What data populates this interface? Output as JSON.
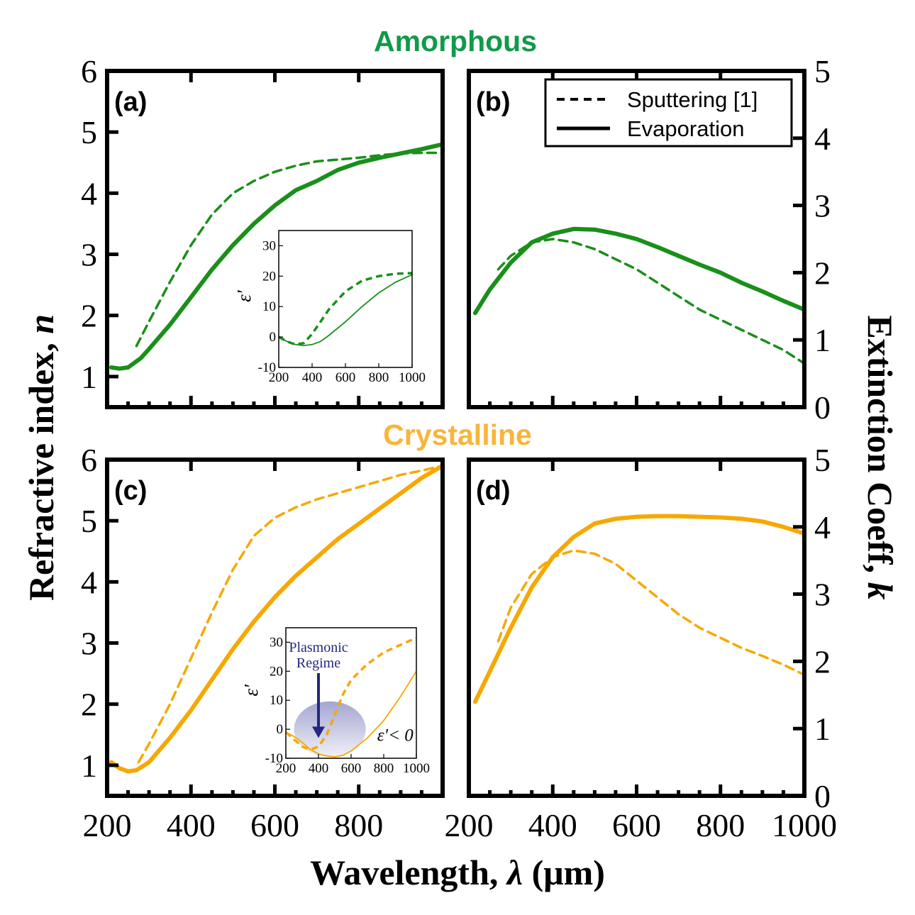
{
  "figure": {
    "group_titles": {
      "amorphous": "Amorphous",
      "crystalline": "Crystalline"
    },
    "y_left_label_main": "Refractive index, ",
    "y_left_label_symbol": "n",
    "y_right_label_main": "Extinction Coeff, ",
    "y_right_label_symbol": "k",
    "x_label_main": "Wavelength, ",
    "x_label_symbol": "λ",
    "x_label_unit": " (μm)",
    "legend": {
      "dashed": "Sputtering [1]",
      "solid": "Evaporation"
    },
    "colors": {
      "amorphous": "#1a8f1a",
      "crystalline": "#f7a800",
      "amorphous_title": "#119a4a",
      "crystalline_title": "#f9b43a",
      "plasmonic": "#24277f",
      "plasmonic_fill": "#9a9ccc"
    },
    "inset_ylabel": "ε′",
    "inset_c_annotation_line1": "Plasmonic",
    "inset_c_annotation_line2": "Regime",
    "inset_c_condition": "ε′< 0"
  },
  "chart_data": [
    {
      "panel": "(a)",
      "type": "line",
      "group": "Amorphous",
      "xlabel": "Wavelength, λ (μm)",
      "ylabel": "Refractive index, n",
      "xlim": [
        200,
        1000
      ],
      "ylim": [
        0.5,
        6
      ],
      "xticks": [
        200,
        400,
        600,
        800
      ],
      "yticks": [
        1,
        2,
        3,
        4,
        5,
        6
      ],
      "series": [
        {
          "name": "Sputtering [1]",
          "style": "dashed",
          "x": [
            270,
            300,
            350,
            400,
            450,
            500,
            550,
            600,
            650,
            700,
            750,
            800,
            850,
            900,
            950,
            1000
          ],
          "values": [
            1.5,
            1.9,
            2.55,
            3.15,
            3.65,
            4.0,
            4.2,
            4.35,
            4.45,
            4.52,
            4.55,
            4.58,
            4.62,
            4.65,
            4.66,
            4.66
          ]
        },
        {
          "name": "Evaporation",
          "style": "solid",
          "x": [
            210,
            230,
            250,
            280,
            300,
            350,
            400,
            450,
            500,
            550,
            600,
            650,
            700,
            750,
            800,
            850,
            900,
            950,
            1000
          ],
          "values": [
            1.15,
            1.13,
            1.15,
            1.3,
            1.45,
            1.85,
            2.3,
            2.75,
            3.15,
            3.5,
            3.8,
            4.05,
            4.2,
            4.38,
            4.5,
            4.58,
            4.65,
            4.72,
            4.8
          ]
        }
      ],
      "inset": {
        "xlim": [
          200,
          1000
        ],
        "ylim": [
          -10,
          35
        ],
        "xticks": [
          200,
          400,
          600,
          800,
          1000
        ],
        "yticks": [
          -10,
          0,
          10,
          20,
          30
        ],
        "series": [
          {
            "name": "Sputtering [1]",
            "style": "dashed",
            "x": [
              200,
              250,
              300,
              350,
              400,
              450,
              500,
              600,
              700,
              800,
              900,
              1000
            ],
            "values": [
              0,
              -1.5,
              -2.5,
              -2,
              1,
              5,
              9,
              15,
              18.5,
              20,
              20.8,
              21
            ]
          },
          {
            "name": "Evaporation",
            "style": "solid",
            "x": [
              200,
              250,
              300,
              350,
              400,
              450,
              500,
              600,
              700,
              800,
              900,
              1000
            ],
            "values": [
              0,
              -1.5,
              -2.5,
              -2.8,
              -2.5,
              -1.5,
              0.5,
              5,
              10,
              14.5,
              18,
              20.5
            ]
          }
        ]
      }
    },
    {
      "panel": "(b)",
      "type": "line",
      "group": "Amorphous",
      "xlabel": "Wavelength, λ (μm)",
      "ylabel": "Extinction Coeff, k",
      "xlim": [
        200,
        1000
      ],
      "ylim": [
        0,
        5
      ],
      "xticks": [
        200,
        400,
        600,
        800
      ],
      "yticks": [
        0,
        1,
        2,
        3,
        4,
        5
      ],
      "series": [
        {
          "name": "Sputtering [1]",
          "style": "dashed",
          "x": [
            270,
            300,
            350,
            400,
            450,
            500,
            550,
            600,
            650,
            700,
            750,
            800,
            850,
            900,
            950,
            1000
          ],
          "values": [
            2.05,
            2.25,
            2.45,
            2.5,
            2.45,
            2.35,
            2.2,
            2.05,
            1.85,
            1.65,
            1.45,
            1.3,
            1.15,
            1.0,
            0.85,
            0.65
          ]
        },
        {
          "name": "Evaporation",
          "style": "solid",
          "x": [
            215,
            250,
            300,
            350,
            400,
            450,
            500,
            550,
            600,
            650,
            700,
            750,
            800,
            850,
            900,
            950,
            1000
          ],
          "values": [
            1.4,
            1.75,
            2.15,
            2.45,
            2.58,
            2.65,
            2.64,
            2.58,
            2.5,
            2.38,
            2.25,
            2.12,
            2.0,
            1.85,
            1.72,
            1.58,
            1.45
          ]
        }
      ]
    },
    {
      "panel": "(c)",
      "type": "line",
      "group": "Crystalline",
      "xlabel": "Wavelength, λ (μm)",
      "ylabel": "Refractive index, n",
      "xlim": [
        200,
        1000
      ],
      "ylim": [
        0.5,
        6
      ],
      "xticks": [
        200,
        400,
        600,
        800
      ],
      "yticks": [
        1,
        2,
        3,
        4,
        5,
        6
      ],
      "series": [
        {
          "name": "Sputtering [1]",
          "style": "dashed",
          "x": [
            275,
            300,
            350,
            400,
            450,
            500,
            550,
            600,
            650,
            700,
            750,
            800,
            850,
            900,
            950,
            1000
          ],
          "values": [
            1.05,
            1.35,
            2.0,
            2.75,
            3.5,
            4.2,
            4.75,
            5.05,
            5.22,
            5.35,
            5.45,
            5.55,
            5.65,
            5.75,
            5.82,
            5.9
          ]
        },
        {
          "name": "Evaporation",
          "style": "solid",
          "x": [
            210,
            230,
            250,
            270,
            300,
            350,
            400,
            450,
            500,
            550,
            600,
            650,
            700,
            750,
            800,
            850,
            900,
            950,
            1000
          ],
          "values": [
            1.05,
            0.95,
            0.9,
            0.92,
            1.05,
            1.45,
            1.9,
            2.4,
            2.9,
            3.35,
            3.75,
            4.1,
            4.4,
            4.7,
            4.95,
            5.2,
            5.45,
            5.7,
            5.9
          ]
        }
      ],
      "inset": {
        "xlim": [
          200,
          1000
        ],
        "ylim": [
          -10,
          35
        ],
        "xticks": [
          200,
          400,
          600,
          800,
          1000
        ],
        "yticks": [
          -10,
          0,
          10,
          20,
          30
        ],
        "series": [
          {
            "name": "Sputtering [1]",
            "style": "dashed",
            "x": [
              200,
              250,
              300,
              350,
              400,
              450,
              500,
              550,
              600,
              700,
              800,
              900,
              1000
            ],
            "values": [
              -1,
              -3.5,
              -6,
              -7,
              -6,
              -2,
              5,
              12,
              17,
              22.5,
              26.5,
              29,
              31.5
            ]
          },
          {
            "name": "Evaporation",
            "style": "solid",
            "x": [
              200,
              250,
              300,
              350,
              400,
              450,
              500,
              550,
              600,
              700,
              800,
              900,
              1000
            ],
            "values": [
              -1,
              -2.5,
              -4.5,
              -7,
              -8.5,
              -9.2,
              -9.5,
              -9,
              -7.5,
              -3,
              3,
              11,
              20
            ]
          }
        ]
      }
    },
    {
      "panel": "(d)",
      "type": "line",
      "group": "Crystalline",
      "xlabel": "Wavelength, λ (μm)",
      "ylabel": "Extinction Coeff, k",
      "xlim": [
        200,
        1000
      ],
      "ylim": [
        0,
        5
      ],
      "xticks": [
        200,
        400,
        600,
        800,
        1000
      ],
      "yticks": [
        0,
        1,
        2,
        3,
        4,
        5
      ],
      "series": [
        {
          "name": "Sputtering [1]",
          "style": "dashed",
          "x": [
            270,
            300,
            350,
            400,
            450,
            500,
            550,
            600,
            650,
            700,
            750,
            800,
            850,
            900,
            950,
            1000
          ],
          "values": [
            2.3,
            2.8,
            3.3,
            3.55,
            3.65,
            3.6,
            3.45,
            3.2,
            2.95,
            2.7,
            2.5,
            2.35,
            2.2,
            2.08,
            1.95,
            1.8
          ]
        },
        {
          "name": "Evaporation",
          "style": "solid",
          "x": [
            215,
            250,
            300,
            350,
            400,
            450,
            500,
            550,
            600,
            650,
            700,
            750,
            800,
            850,
            900,
            950,
            1000
          ],
          "values": [
            1.4,
            1.85,
            2.5,
            3.1,
            3.55,
            3.85,
            4.05,
            4.12,
            4.15,
            4.16,
            4.16,
            4.15,
            4.14,
            4.12,
            4.08,
            4.0,
            3.9
          ]
        }
      ]
    }
  ]
}
